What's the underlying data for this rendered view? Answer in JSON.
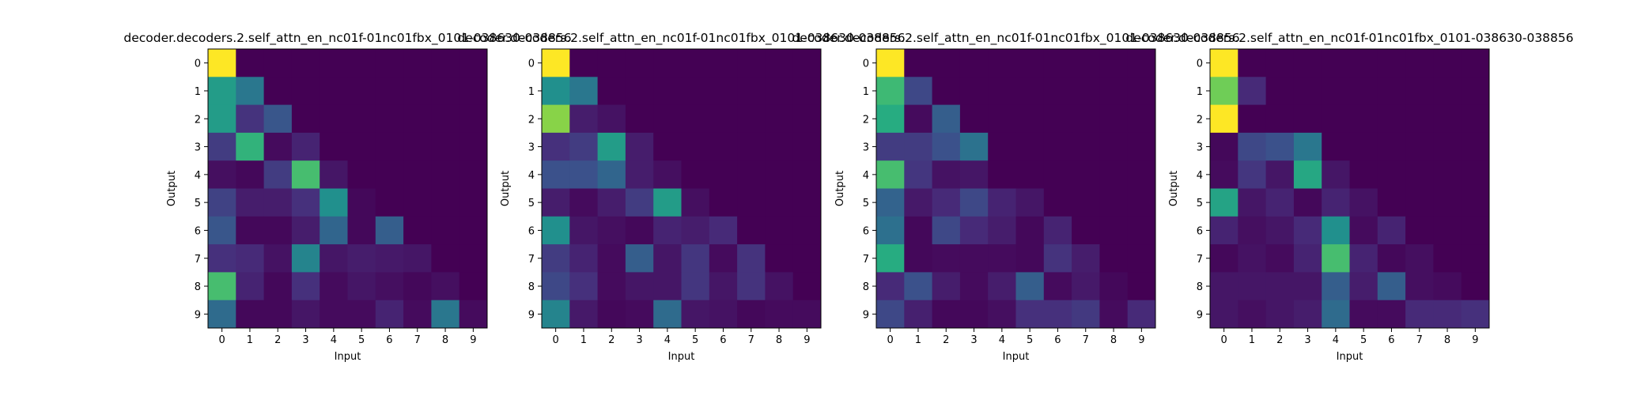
{
  "figure": {
    "colormap": "viridis",
    "colormap_stops": [
      "#440154",
      "#472c7a",
      "#3b518b",
      "#2c718e",
      "#21908d",
      "#27ad81",
      "#5cc863",
      "#aadc32",
      "#fde725"
    ]
  },
  "chart_data": [
    {
      "type": "heatmap",
      "title": "decoder.decoders.2.self_attn_en_nc01f-01nc01fbx_0101-038630-038856",
      "xlabel": "Input",
      "ylabel": "Output",
      "x_ticks": [
        "0",
        "1",
        "2",
        "3",
        "4",
        "5",
        "6",
        "7",
        "8",
        "9"
      ],
      "y_ticks": [
        "0",
        "1",
        "2",
        "3",
        "4",
        "5",
        "6",
        "7",
        "8",
        "9"
      ],
      "vmin": 0,
      "vmax": 1,
      "values": [
        [
          1.0,
          0,
          0,
          0,
          0,
          0,
          0,
          0,
          0,
          0
        ],
        [
          0.55,
          0.4,
          0,
          0,
          0,
          0,
          0,
          0,
          0,
          0
        ],
        [
          0.55,
          0.15,
          0.27,
          0,
          0,
          0,
          0,
          0,
          0,
          0
        ],
        [
          0.18,
          0.65,
          0.03,
          0.1,
          0,
          0,
          0,
          0,
          0,
          0
        ],
        [
          0.04,
          0.02,
          0.18,
          0.7,
          0.06,
          0,
          0,
          0,
          0,
          0
        ],
        [
          0.2,
          0.08,
          0.08,
          0.14,
          0.5,
          0.02,
          0,
          0,
          0,
          0
        ],
        [
          0.27,
          0.02,
          0.02,
          0.08,
          0.33,
          0.02,
          0.3,
          0,
          0,
          0
        ],
        [
          0.14,
          0.12,
          0.05,
          0.45,
          0.06,
          0.08,
          0.07,
          0.06,
          0,
          0
        ],
        [
          0.7,
          0.1,
          0.02,
          0.14,
          0.03,
          0.06,
          0.04,
          0.02,
          0.04,
          0
        ],
        [
          0.35,
          0.02,
          0.02,
          0.06,
          0.03,
          0.03,
          0.1,
          0.03,
          0.4,
          0.03
        ]
      ]
    },
    {
      "type": "heatmap",
      "title": "decoder.decoders.2.self_attn_en_nc01f-01nc01fbx_0101-038630-038856",
      "xlabel": "Input",
      "ylabel": "Output",
      "x_ticks": [
        "0",
        "1",
        "2",
        "3",
        "4",
        "5",
        "6",
        "7",
        "8",
        "9"
      ],
      "y_ticks": [
        "0",
        "1",
        "2",
        "3",
        "4",
        "5",
        "6",
        "7",
        "8",
        "9"
      ],
      "vmin": 0,
      "vmax": 1,
      "values": [
        [
          1.0,
          0,
          0,
          0,
          0,
          0,
          0,
          0,
          0,
          0
        ],
        [
          0.5,
          0.4,
          0,
          0,
          0,
          0,
          0,
          0,
          0,
          0
        ],
        [
          0.82,
          0.08,
          0.05,
          0,
          0,
          0,
          0,
          0,
          0,
          0
        ],
        [
          0.14,
          0.18,
          0.55,
          0.08,
          0,
          0,
          0,
          0,
          0,
          0
        ],
        [
          0.25,
          0.25,
          0.33,
          0.08,
          0.04,
          0,
          0,
          0,
          0,
          0
        ],
        [
          0.08,
          0.03,
          0.08,
          0.18,
          0.55,
          0.04,
          0,
          0,
          0,
          0
        ],
        [
          0.5,
          0.06,
          0.04,
          0.02,
          0.1,
          0.08,
          0.12,
          0,
          0,
          0
        ],
        [
          0.18,
          0.1,
          0.03,
          0.3,
          0.06,
          0.16,
          0.03,
          0.15,
          0,
          0
        ],
        [
          0.22,
          0.14,
          0.03,
          0.06,
          0.06,
          0.16,
          0.06,
          0.15,
          0.05,
          0
        ],
        [
          0.45,
          0.07,
          0.02,
          0.03,
          0.35,
          0.06,
          0.05,
          0.02,
          0.03,
          0.03
        ]
      ]
    },
    {
      "type": "heatmap",
      "title": "decoder.decoders.2.self_attn_en_nc01f-01nc01fbx_0101-038630-038856",
      "xlabel": "Input",
      "ylabel": "Output",
      "x_ticks": [
        "0",
        "1",
        "2",
        "3",
        "4",
        "5",
        "6",
        "7",
        "8",
        "9"
      ],
      "y_ticks": [
        "0",
        "1",
        "2",
        "3",
        "4",
        "5",
        "6",
        "7",
        "8",
        "9"
      ],
      "vmin": 0,
      "vmax": 1,
      "values": [
        [
          1.0,
          0,
          0,
          0,
          0,
          0,
          0,
          0,
          0,
          0
        ],
        [
          0.68,
          0.22,
          0,
          0,
          0,
          0,
          0,
          0,
          0,
          0
        ],
        [
          0.62,
          0.03,
          0.3,
          0,
          0,
          0,
          0,
          0,
          0,
          0
        ],
        [
          0.18,
          0.18,
          0.25,
          0.38,
          0,
          0,
          0,
          0,
          0,
          0
        ],
        [
          0.7,
          0.16,
          0.05,
          0.06,
          0,
          0,
          0,
          0,
          0,
          0
        ],
        [
          0.32,
          0.07,
          0.12,
          0.22,
          0.1,
          0.06,
          0,
          0,
          0,
          0
        ],
        [
          0.37,
          0.02,
          0.22,
          0.12,
          0.08,
          0.02,
          0.1,
          0,
          0,
          0
        ],
        [
          0.62,
          0.02,
          0.03,
          0.03,
          0.03,
          0.02,
          0.15,
          0.08,
          0,
          0
        ],
        [
          0.12,
          0.25,
          0.08,
          0.03,
          0.08,
          0.3,
          0.03,
          0.07,
          0.02,
          0
        ],
        [
          0.22,
          0.09,
          0.02,
          0.02,
          0.04,
          0.14,
          0.14,
          0.17,
          0.03,
          0.12
        ]
      ]
    },
    {
      "type": "heatmap",
      "title": "decoder.decoders.2.self_attn_en_nc01f-01nc01fbx_0101-038630-038856",
      "xlabel": "Input",
      "ylabel": "Output",
      "x_ticks": [
        "0",
        "1",
        "2",
        "3",
        "4",
        "5",
        "6",
        "7",
        "8",
        "9"
      ],
      "y_ticks": [
        "0",
        "1",
        "2",
        "3",
        "4",
        "5",
        "6",
        "7",
        "8",
        "9"
      ],
      "vmin": 0,
      "vmax": 1,
      "values": [
        [
          1.0,
          0,
          0,
          0,
          0,
          0,
          0,
          0,
          0,
          0
        ],
        [
          0.78,
          0.12,
          0,
          0,
          0,
          0,
          0,
          0,
          0,
          0
        ],
        [
          1.0,
          0,
          0,
          0,
          0,
          0,
          0,
          0,
          0,
          0
        ],
        [
          0.02,
          0.22,
          0.25,
          0.4,
          0,
          0,
          0,
          0,
          0,
          0
        ],
        [
          0.03,
          0.16,
          0.06,
          0.6,
          0.06,
          0,
          0,
          0,
          0,
          0
        ],
        [
          0.58,
          0.06,
          0.1,
          0.02,
          0.1,
          0.05,
          0,
          0,
          0,
          0
        ],
        [
          0.1,
          0.04,
          0.06,
          0.12,
          0.5,
          0.03,
          0.1,
          0,
          0,
          0
        ],
        [
          0.02,
          0.05,
          0.03,
          0.1,
          0.7,
          0.1,
          0.02,
          0.04,
          0,
          0
        ],
        [
          0.06,
          0.06,
          0.06,
          0.06,
          0.3,
          0.08,
          0.3,
          0.04,
          0.03,
          0
        ],
        [
          0.06,
          0.04,
          0.06,
          0.08,
          0.35,
          0.03,
          0.03,
          0.12,
          0.12,
          0.14
        ]
      ]
    }
  ]
}
